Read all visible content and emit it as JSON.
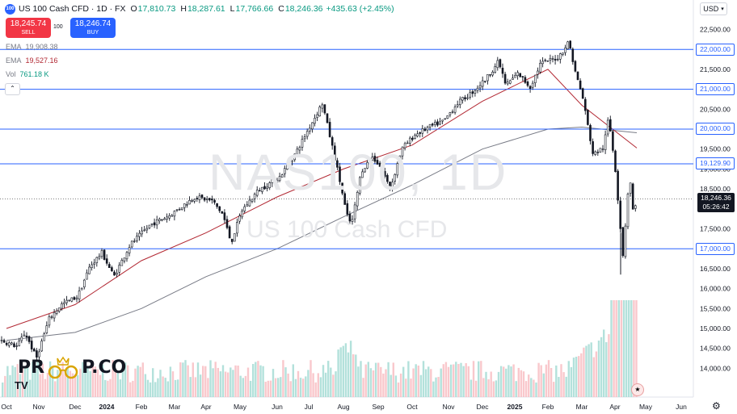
{
  "header": {
    "logo_icon": "nasdaq-100-icon",
    "symbol_title": "US 100 Cash CFD · 1D · FX",
    "open_label": "O",
    "open_value": "17,810.73",
    "high_label": "H",
    "high_value": "18,287.61",
    "low_label": "L",
    "low_value": "17,766.66",
    "close_label": "C",
    "close_value": "18,246.36",
    "change_value": "+435.63 (+2.45%)"
  },
  "trade": {
    "sell_price": "18,245.74",
    "sell_label": "SELL",
    "spread": "100",
    "buy_price": "18,246.74",
    "buy_label": "BUY"
  },
  "indicators": [
    {
      "name": "EMA",
      "value": "19,908.38",
      "color": "#787b86"
    },
    {
      "name": "EMA",
      "value": "19,527.16",
      "color": "#b22833"
    },
    {
      "name": "Vol",
      "value": "761.18 K",
      "color": "#089981"
    }
  ],
  "currency": {
    "label": "USD",
    "icon": "chevron-down-icon"
  },
  "watermark": {
    "symbol": "NAS100, 1D",
    "description": "US 100 Cash CFD"
  },
  "price_axis": {
    "ticks": [
      "22,500.00",
      "22,000.00",
      "21,500.00",
      "21,000.00",
      "20,500.00",
      "20,000.00",
      "19,500.00",
      "19,000.00",
      "18,500.00",
      "18,000.00",
      "17,500.00",
      "17,000.00",
      "16,500.00",
      "16,000.00",
      "15,500.00",
      "15,000.00",
      "14,500.00",
      "14,000.00"
    ],
    "current_price": "18,246.36",
    "countdown": "05:26:42"
  },
  "time_axis": {
    "ticks": [
      "Oct",
      "Nov",
      "Dec",
      "2024",
      "Feb",
      "Mar",
      "Apr",
      "May",
      "Jun",
      "Jul",
      "Aug",
      "Sep",
      "Oct",
      "Nov",
      "Dec",
      "2025",
      "Feb",
      "Mar",
      "Apr",
      "May",
      "Jun"
    ]
  },
  "brand": {
    "name": "PRO P.CO",
    "left": "PR",
    "right": "P.CO",
    "tv_logo": "TV"
  },
  "colors": {
    "up": "#089981",
    "down": "#f23645",
    "hline": "#2962ff",
    "ema_long": "#787b86",
    "ema_short": "#b22833"
  },
  "chart_data": {
    "type": "line",
    "title": "NAS100, 1D",
    "subtitle": "US 100 Cash CFD",
    "series": [
      {
        "name": "NAS100",
        "x": [
          "2023-10",
          "2023-11",
          "2023-12",
          "2024-01",
          "2024-02",
          "2024-03",
          "2024-04",
          "2024-05",
          "2024-06",
          "2024-07",
          "2024-08",
          "2024-09",
          "2024-10",
          "2024-11",
          "2024-12",
          "2025-01",
          "2025-02",
          "2025-03",
          "2025-04"
        ],
        "y": [
          14700,
          15000,
          16300,
          16900,
          17900,
          18300,
          17500,
          18500,
          19600,
          20600,
          17800,
          18800,
          20000,
          20800,
          21400,
          21000,
          22100,
          19800,
          18250
        ]
      },
      {
        "name": "EMA",
        "x": [
          "2023-10",
          "2023-12",
          "2024-02",
          "2024-04",
          "2024-06",
          "2024-08",
          "2024-10",
          "2024-12",
          "2025-02",
          "2025-03",
          "2025-04"
        ],
        "y": [
          14700,
          14900,
          15500,
          16300,
          17000,
          17800,
          18600,
          19500,
          20000,
          20050,
          19908
        ]
      },
      {
        "name": "EMA",
        "x": [
          "2023-10",
          "2023-12",
          "2024-02",
          "2024-04",
          "2024-06",
          "2024-08",
          "2024-10",
          "2024-12",
          "2025-02",
          "2025-03",
          "2025-04"
        ],
        "y": [
          15000,
          15600,
          16700,
          17400,
          18300,
          19000,
          19600,
          20700,
          21500,
          20600,
          19527
        ]
      }
    ],
    "horizontal_levels": [
      22000,
      21000,
      20000,
      19129.9,
      17000
    ],
    "horizontal_level_labels": [
      "22,000.00",
      "21,000.00",
      "20,000.00",
      "19,129.90",
      "17,000.00"
    ],
    "ylim": [
      13800,
      22700
    ],
    "y_ticks": [
      22500,
      22000,
      21500,
      21000,
      20500,
      20000,
      19500,
      19000,
      18500,
      18000,
      17500,
      17000,
      16500,
      16000,
      15500,
      15000,
      14500,
      14000
    ],
    "last_close": 18246.36,
    "grid": false
  }
}
